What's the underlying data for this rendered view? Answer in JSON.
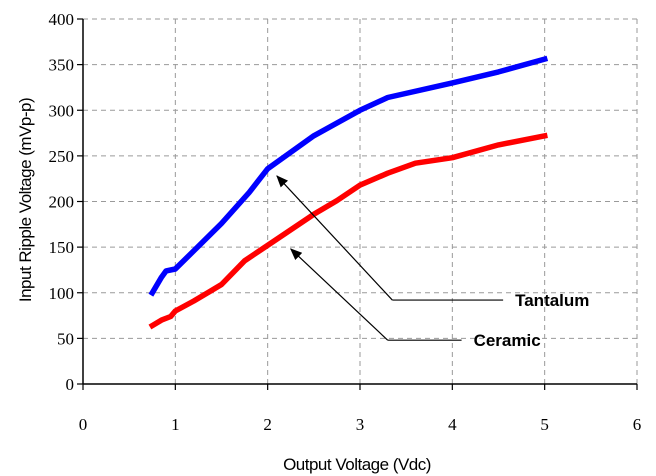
{
  "chart_data": {
    "type": "line",
    "xlabel": "Output Voltage (Vdc)",
    "ylabel": "Input Ripple Voltage (mVp-p)",
    "xlim": [
      0,
      6
    ],
    "ylim": [
      0,
      400
    ],
    "xticks": [
      0,
      1,
      2,
      3,
      4,
      5,
      6
    ],
    "yticks": [
      0,
      50,
      100,
      150,
      200,
      250,
      300,
      350,
      400
    ],
    "grid": true,
    "series": [
      {
        "name": "Tantalum",
        "color": "#0000ff",
        "x": [
          0.75,
          0.85,
          0.9,
          1.0,
          1.2,
          1.5,
          1.8,
          2.0,
          2.5,
          3.0,
          3.3,
          4.0,
          4.5,
          5.0
        ],
        "y": [
          100,
          117,
          124,
          126,
          146,
          176,
          210,
          236,
          272,
          300,
          314,
          330,
          342,
          356
        ]
      },
      {
        "name": "Ceramic",
        "color": "#ff0000",
        "x": [
          0.75,
          0.85,
          0.95,
          1.0,
          1.2,
          1.35,
          1.5,
          1.75,
          2.0,
          2.5,
          2.75,
          3.0,
          3.3,
          3.6,
          4.0,
          4.5,
          5.0
        ],
        "y": [
          64,
          70,
          74,
          80,
          91,
          100,
          109,
          135,
          152,
          186,
          201,
          218,
          231,
          242,
          248,
          262,
          272
        ]
      }
    ],
    "annotations": [
      {
        "label": "Tantalum",
        "series": "Tantalum",
        "point": [
          2.1,
          228
        ],
        "tail": [
          3.35,
          92
        ],
        "line_end": [
          4.55,
          92
        ]
      },
      {
        "label": "Ceramic",
        "series": "Ceramic",
        "point": [
          2.25,
          148
        ],
        "tail": [
          3.3,
          48
        ],
        "line_end": [
          4.1,
          48
        ]
      }
    ]
  }
}
